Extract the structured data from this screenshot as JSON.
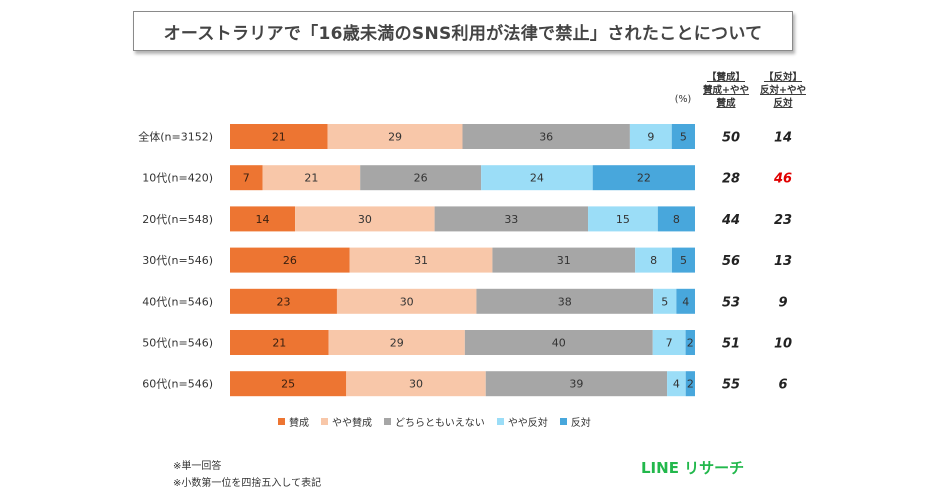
{
  "title": "オーストラリアで「16歳未満のSNS利用が法律で禁止」されたことについて",
  "unit_label": "(%)",
  "summary_headers": {
    "agree": [
      "【賛成】",
      "賛成+やや",
      "賛成"
    ],
    "oppose": [
      "【反対】",
      "反対+やや",
      "反対"
    ]
  },
  "notes": [
    "※単一回答",
    "※小数第一位を四捨五入して表記"
  ],
  "logo_text": "LINE リサーチ",
  "colors": {
    "agree": "#ed7532",
    "somewhat_agree": "#f8c7a9",
    "neutral": "#a6a6a6",
    "somewhat_oppose": "#9bddf7",
    "oppose": "#48a7dc",
    "highlight": "#e00000"
  },
  "chart_data": {
    "type": "bar",
    "orientation": "horizontal",
    "stacked": true,
    "percent": true,
    "categories": [
      "全体(n=3152)",
      "10代(n=420)",
      "20代(n=548)",
      "30代(n=546)",
      "40代(n=546)",
      "50代(n=546)",
      "60代(n=546)"
    ],
    "series": [
      {
        "name": "賛成",
        "color_key": "agree",
        "values": [
          21,
          7,
          14,
          26,
          23,
          21,
          25
        ]
      },
      {
        "name": "やや賛成",
        "color_key": "somewhat_agree",
        "values": [
          29,
          21,
          30,
          31,
          30,
          29,
          30
        ]
      },
      {
        "name": "どちらともいえない",
        "color_key": "neutral",
        "values": [
          36,
          26,
          33,
          31,
          38,
          40,
          39
        ]
      },
      {
        "name": "やや反対",
        "color_key": "somewhat_oppose",
        "values": [
          9,
          24,
          15,
          8,
          5,
          7,
          4
        ]
      },
      {
        "name": "反対",
        "color_key": "oppose",
        "values": [
          5,
          22,
          8,
          5,
          4,
          2,
          2
        ]
      }
    ],
    "agree_totals": [
      50,
      28,
      44,
      56,
      53,
      51,
      55
    ],
    "oppose_totals": [
      14,
      46,
      23,
      13,
      9,
      10,
      6
    ],
    "highlighted_oppose_index": 1,
    "legend_position": "bottom",
    "grid": false
  }
}
